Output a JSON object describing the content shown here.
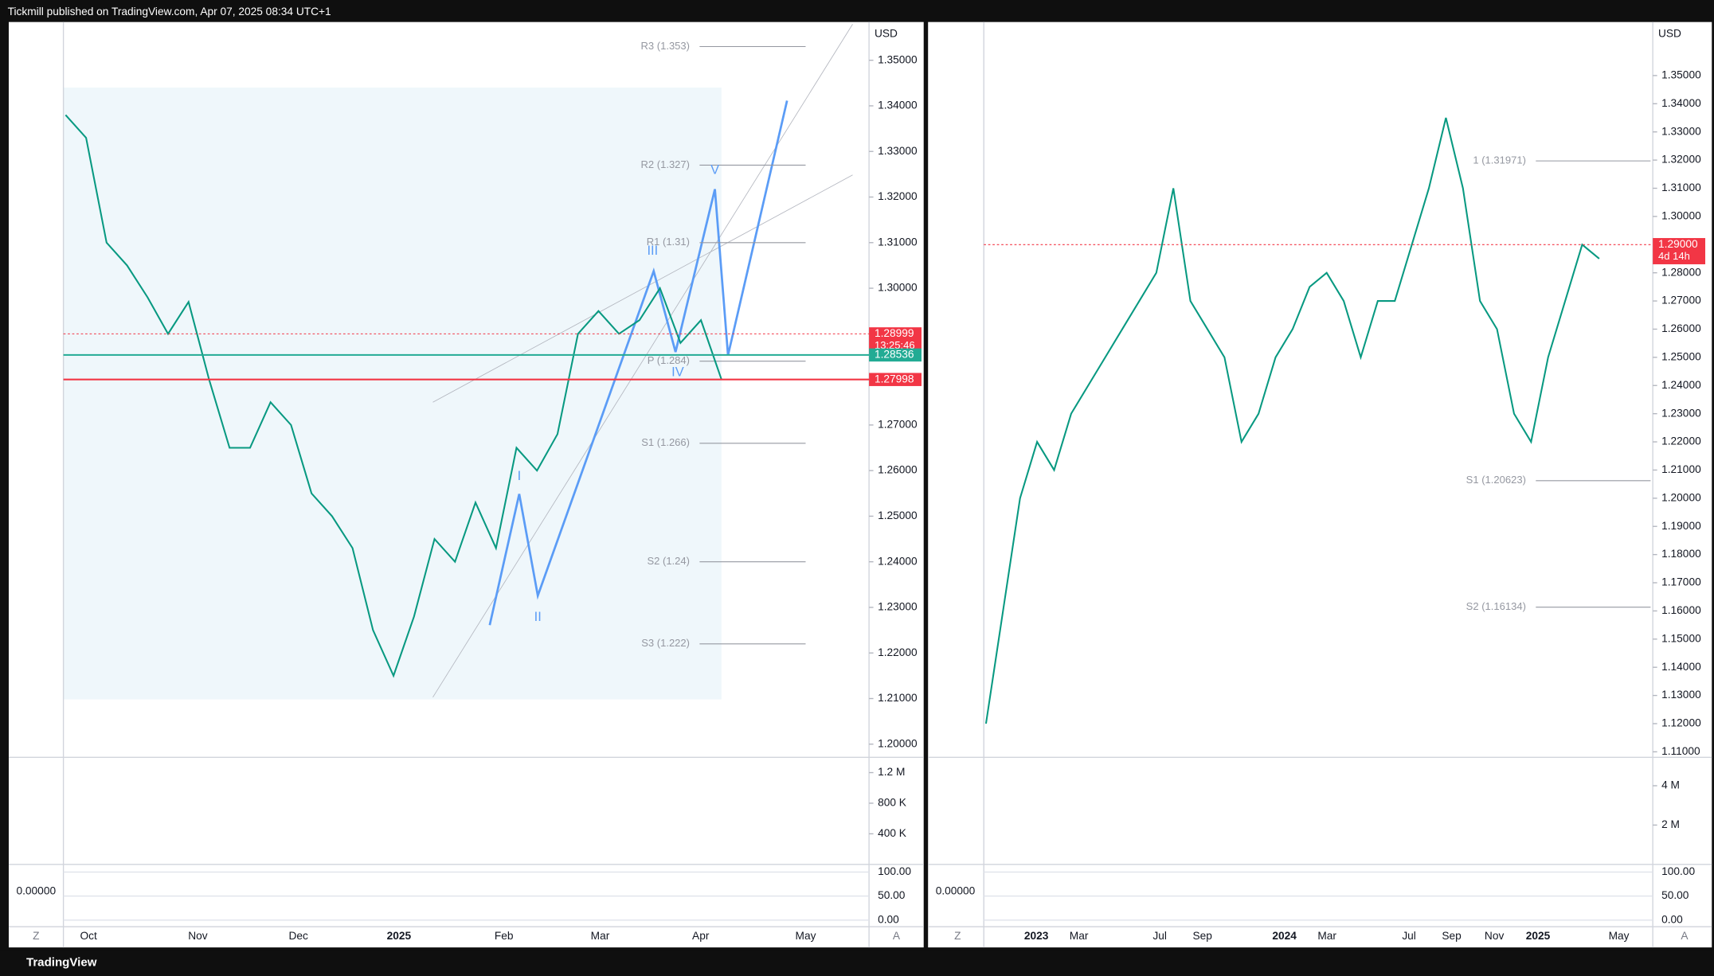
{
  "header": {
    "text": "Tickmill published on TradingView.com, Apr 07, 2025 08:34 UTC+1"
  },
  "footer": {
    "brand": "TradingView"
  },
  "panels": [
    {
      "currency": "USD",
      "price_ticks": [
        {
          "value": 1.2,
          "label": "1.20000"
        },
        {
          "value": 1.21,
          "label": "1.21000"
        },
        {
          "value": 1.22,
          "label": "1.22000"
        },
        {
          "value": 1.23,
          "label": "1.23000"
        },
        {
          "value": 1.24,
          "label": "1.24000"
        },
        {
          "value": 1.25,
          "label": "1.25000"
        },
        {
          "value": 1.26,
          "label": "1.26000"
        },
        {
          "value": 1.27,
          "label": "1.27000"
        },
        {
          "value": 1.28,
          "label": "1.28000"
        },
        {
          "value": 1.29,
          "label": "1.29000"
        },
        {
          "value": 1.3,
          "label": "1.30000"
        },
        {
          "value": 1.31,
          "label": "1.31000"
        },
        {
          "value": 1.32,
          "label": "1.32000"
        },
        {
          "value": 1.33,
          "label": "1.33000"
        },
        {
          "value": 1.34,
          "label": "1.34000"
        },
        {
          "value": 1.35,
          "label": "1.35000"
        }
      ],
      "dates": [
        "Oct",
        "Nov",
        "Dec",
        "2025",
        "Feb",
        "Mar",
        "Apr",
        "May"
      ],
      "pivots": [
        {
          "label": "R3 (1.353)",
          "value": 1.353
        },
        {
          "label": "R2 (1.327)",
          "value": 1.327
        },
        {
          "label": "R1 (1.31)",
          "value": 1.31
        },
        {
          "label": "P (1.284)",
          "value": 1.284
        },
        {
          "label": "S1 (1.266)",
          "value": 1.266
        },
        {
          "label": "S2 (1.24)",
          "value": 1.24
        },
        {
          "label": "S3 (1.222)",
          "value": 1.222
        }
      ],
      "waves": [
        "I",
        "II",
        "III",
        "IV",
        "V"
      ],
      "price_tags": [
        {
          "value": 1.28999,
          "color": "#f23645"
        },
        {
          "value": 1.28536,
          "color": "#22ab94"
        },
        {
          "value": 1.27998,
          "color": "#f23645"
        }
      ],
      "countdown": "13:25:46",
      "price_path": [
        1.338,
        1.333,
        1.31,
        1.305,
        1.298,
        1.29,
        1.297,
        1.28,
        1.265,
        1.265,
        1.275,
        1.27,
        1.255,
        1.25,
        1.243,
        1.225,
        1.215,
        1.228,
        1.245,
        1.24,
        1.253,
        1.243,
        1.265,
        1.26,
        1.268,
        1.29,
        1.295,
        1.29,
        1.293,
        1.3,
        1.288,
        1.293,
        1.28
      ],
      "volume_ticks": [
        {
          "value": 1200000,
          "label": "1.2 M"
        },
        {
          "value": 800000,
          "label": "800 K"
        },
        {
          "value": 400000,
          "label": "400 K"
        }
      ],
      "osc_ticks": [
        {
          "value": 100,
          "label": "100.00"
        },
        {
          "value": 50,
          "label": "50.00"
        },
        {
          "value": 0,
          "label": "0.00"
        }
      ],
      "osc_value": "0.00000"
    },
    {
      "currency": "USD",
      "price_ticks": [
        {
          "value": 1.11,
          "label": "1.11000"
        },
        {
          "value": 1.12,
          "label": "1.12000"
        },
        {
          "value": 1.13,
          "label": "1.13000"
        },
        {
          "value": 1.14,
          "label": "1.14000"
        },
        {
          "value": 1.15,
          "label": "1.15000"
        },
        {
          "value": 1.16,
          "label": "1.16000"
        },
        {
          "value": 1.17,
          "label": "1.17000"
        },
        {
          "value": 1.18,
          "label": "1.18000"
        },
        {
          "value": 1.19,
          "label": "1.19000"
        },
        {
          "value": 1.2,
          "label": "1.20000"
        },
        {
          "value": 1.21,
          "label": "1.21000"
        },
        {
          "value": 1.22,
          "label": "1.22000"
        },
        {
          "value": 1.23,
          "label": "1.23000"
        },
        {
          "value": 1.24,
          "label": "1.24000"
        },
        {
          "value": 1.25,
          "label": "1.25000"
        },
        {
          "value": 1.26,
          "label": "1.26000"
        },
        {
          "value": 1.27,
          "label": "1.27000"
        },
        {
          "value": 1.28,
          "label": "1.28000"
        },
        {
          "value": 1.29,
          "label": "1.29000"
        },
        {
          "value": 1.3,
          "label": "1.30000"
        },
        {
          "value": 1.31,
          "label": "1.31000"
        },
        {
          "value": 1.32,
          "label": "1.32000"
        },
        {
          "value": 1.33,
          "label": "1.33000"
        },
        {
          "value": 1.34,
          "label": "1.34000"
        },
        {
          "value": 1.35,
          "label": "1.35000"
        }
      ],
      "dates": [
        "2023",
        "Mar",
        "Jul",
        "Sep",
        "2024",
        "Mar",
        "Jul",
        "Sep",
        "Nov",
        "2025",
        "May"
      ],
      "pivots": [
        {
          "label": "1 (1.31971)",
          "value": 1.31971
        },
        {
          "label": "S1 (1.20623)",
          "value": 1.20623
        },
        {
          "label": "S2 (1.16134)",
          "value": 1.16134
        }
      ],
      "price_tags": [
        {
          "value": 1.29,
          "label": "1.29000",
          "color": "#f23645"
        }
      ],
      "countdown": "4d 14h",
      "price_path": [
        1.12,
        1.16,
        1.2,
        1.22,
        1.21,
        1.23,
        1.24,
        1.25,
        1.26,
        1.27,
        1.28,
        1.31,
        1.27,
        1.26,
        1.25,
        1.22,
        1.23,
        1.25,
        1.26,
        1.275,
        1.28,
        1.27,
        1.25,
        1.27,
        1.27,
        1.29,
        1.31,
        1.335,
        1.31,
        1.27,
        1.26,
        1.23,
        1.22,
        1.25,
        1.27,
        1.29,
        1.285
      ],
      "volume_ticks": [
        {
          "value": 4000000,
          "label": "4 M"
        },
        {
          "value": 2000000,
          "label": "2 M"
        }
      ],
      "osc_ticks": [
        {
          "value": 100,
          "label": "100.00"
        },
        {
          "value": 50,
          "label": "50.00"
        },
        {
          "value": 0,
          "label": "0.00"
        }
      ],
      "osc_value": "0.00000"
    }
  ]
}
